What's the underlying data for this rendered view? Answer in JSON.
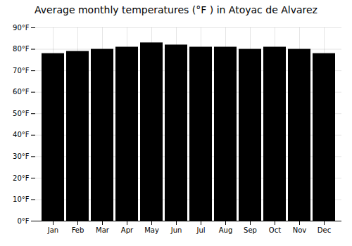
{
  "chart_data": {
    "type": "bar",
    "title": "Average monthly temperatures (°F ) in Atoyac de Alvarez",
    "categories": [
      "Jan",
      "Feb",
      "Mar",
      "Apr",
      "May",
      "Jun",
      "Jul",
      "Aug",
      "Sep",
      "Oct",
      "Nov",
      "Dec"
    ],
    "values": [
      78,
      79,
      80,
      81,
      83,
      82,
      81,
      81,
      80,
      81,
      80,
      78
    ],
    "ylim": [
      0,
      90
    ],
    "yticks": [
      {
        "value": 0,
        "label": "0°F"
      },
      {
        "value": 10,
        "label": "10°F"
      },
      {
        "value": 20,
        "label": "20°F"
      },
      {
        "value": 30,
        "label": "30°F"
      },
      {
        "value": 40,
        "label": "40°F"
      },
      {
        "value": 50,
        "label": "50°F"
      },
      {
        "value": 60,
        "label": "60°F"
      },
      {
        "value": 70,
        "label": "70°F"
      },
      {
        "value": 80,
        "label": "80°F"
      },
      {
        "value": 90,
        "label": "90°F"
      }
    ],
    "grid": true
  }
}
